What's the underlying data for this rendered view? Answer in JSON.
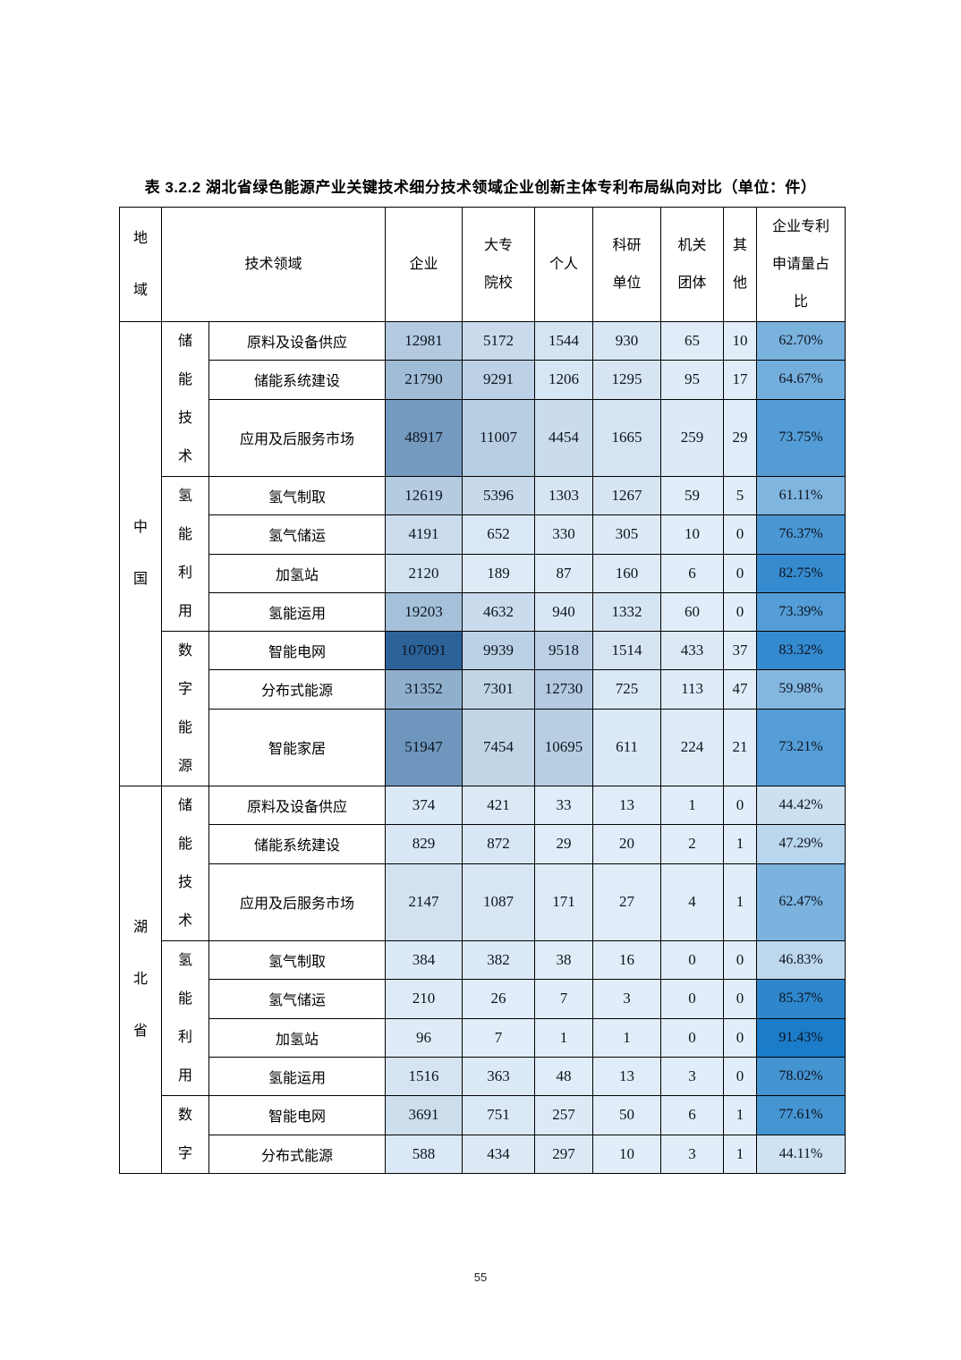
{
  "page": {
    "title": "表 3.2.2 湖北省绿色能源产业关键技术细分技术领域企业创新主体专利布局纵向对比（单位：件）",
    "page_number": "55"
  },
  "table": {
    "header": {
      "region_lines": [
        "地",
        "域"
      ],
      "tech_label": "技术领域",
      "columns": [
        {
          "id": "enterprise",
          "lines": [
            "企业"
          ]
        },
        {
          "id": "college",
          "lines": [
            "大专",
            "院校"
          ]
        },
        {
          "id": "individual",
          "lines": [
            "个人"
          ]
        },
        {
          "id": "research",
          "lines": [
            "科研",
            "单位"
          ]
        },
        {
          "id": "agency",
          "lines": [
            "机关",
            "团体"
          ]
        },
        {
          "id": "other",
          "lines": [
            "其",
            "他"
          ]
        },
        {
          "id": "ratio",
          "lines": [
            "企业专利",
            "申请量占",
            "比"
          ]
        }
      ]
    },
    "heatmap": {
      "count_scale": {
        "min": 0,
        "max": 107091,
        "exponent": 0.65,
        "light": "#e1edf8",
        "dark": "#2b6399"
      },
      "pct_scale": {
        "min": 44.11,
        "max": 91.43,
        "exponent": 0.8,
        "light": "#cfe2f1",
        "dark": "#1b7cc9"
      }
    },
    "regions": [
      {
        "name": "中国",
        "groups": [
          {
            "name": "储能技术",
            "rows": [
              {
                "field": "原料及设备供应",
                "values": [
                  12981,
                  5172,
                  1544,
                  930,
                  65,
                  10
                ],
                "pct": "62.70%"
              },
              {
                "field": "储能系统建设",
                "values": [
                  21790,
                  9291,
                  1206,
                  1295,
                  95,
                  17
                ],
                "pct": "64.67%"
              },
              {
                "field": "应用及后服务市场",
                "values": [
                  48917,
                  11007,
                  4454,
                  1665,
                  259,
                  29
                ],
                "pct": "73.75%",
                "tall": true
              }
            ]
          },
          {
            "name": "氢能利用",
            "rows": [
              {
                "field": "氢气制取",
                "values": [
                  12619,
                  5396,
                  1303,
                  1267,
                  59,
                  5
                ],
                "pct": "61.11%"
              },
              {
                "field": "氢气储运",
                "values": [
                  4191,
                  652,
                  330,
                  305,
                  10,
                  0
                ],
                "pct": "76.37%"
              },
              {
                "field": "加氢站",
                "values": [
                  2120,
                  189,
                  87,
                  160,
                  6,
                  0
                ],
                "pct": "82.75%"
              },
              {
                "field": "氢能运用",
                "values": [
                  19203,
                  4632,
                  940,
                  1332,
                  60,
                  0
                ],
                "pct": "73.39%"
              }
            ]
          },
          {
            "name": "数字能源",
            "rows": [
              {
                "field": "智能电网",
                "values": [
                  107091,
                  9939,
                  9518,
                  1514,
                  433,
                  37
                ],
                "pct": "83.32%"
              },
              {
                "field": "分布式能源",
                "values": [
                  31352,
                  7301,
                  12730,
                  725,
                  113,
                  47
                ],
                "pct": "59.98%"
              },
              {
                "field": "智能家居",
                "values": [
                  51947,
                  7454,
                  10695,
                  611,
                  224,
                  21
                ],
                "pct": "73.21%",
                "tall": true
              }
            ]
          }
        ]
      },
      {
        "name": "湖北省",
        "groups": [
          {
            "name": "储能技术",
            "rows": [
              {
                "field": "原料及设备供应",
                "values": [
                  374,
                  421,
                  33,
                  13,
                  1,
                  0
                ],
                "pct": "44.42%"
              },
              {
                "field": "储能系统建设",
                "values": [
                  829,
                  872,
                  29,
                  20,
                  2,
                  1
                ],
                "pct": "47.29%"
              },
              {
                "field": "应用及后服务市场",
                "values": [
                  2147,
                  1087,
                  171,
                  27,
                  4,
                  1
                ],
                "pct": "62.47%",
                "tall": true
              }
            ]
          },
          {
            "name": "氢能利用",
            "rows": [
              {
                "field": "氢气制取",
                "values": [
                  384,
                  382,
                  38,
                  16,
                  0,
                  0
                ],
                "pct": "46.83%"
              },
              {
                "field": "氢气储运",
                "values": [
                  210,
                  26,
                  7,
                  3,
                  0,
                  0
                ],
                "pct": "85.37%"
              },
              {
                "field": "加氢站",
                "values": [
                  96,
                  7,
                  1,
                  1,
                  0,
                  0
                ],
                "pct": "91.43%"
              },
              {
                "field": "氢能运用",
                "values": [
                  1516,
                  363,
                  48,
                  13,
                  3,
                  0
                ],
                "pct": "78.02%"
              }
            ]
          },
          {
            "name": "数字",
            "rows": [
              {
                "field": "智能电网",
                "values": [
                  3691,
                  751,
                  257,
                  50,
                  6,
                  1
                ],
                "pct": "77.61%"
              },
              {
                "field": "分布式能源",
                "values": [
                  588,
                  434,
                  297,
                  10,
                  3,
                  1
                ],
                "pct": "44.11%"
              }
            ]
          }
        ]
      }
    ]
  }
}
